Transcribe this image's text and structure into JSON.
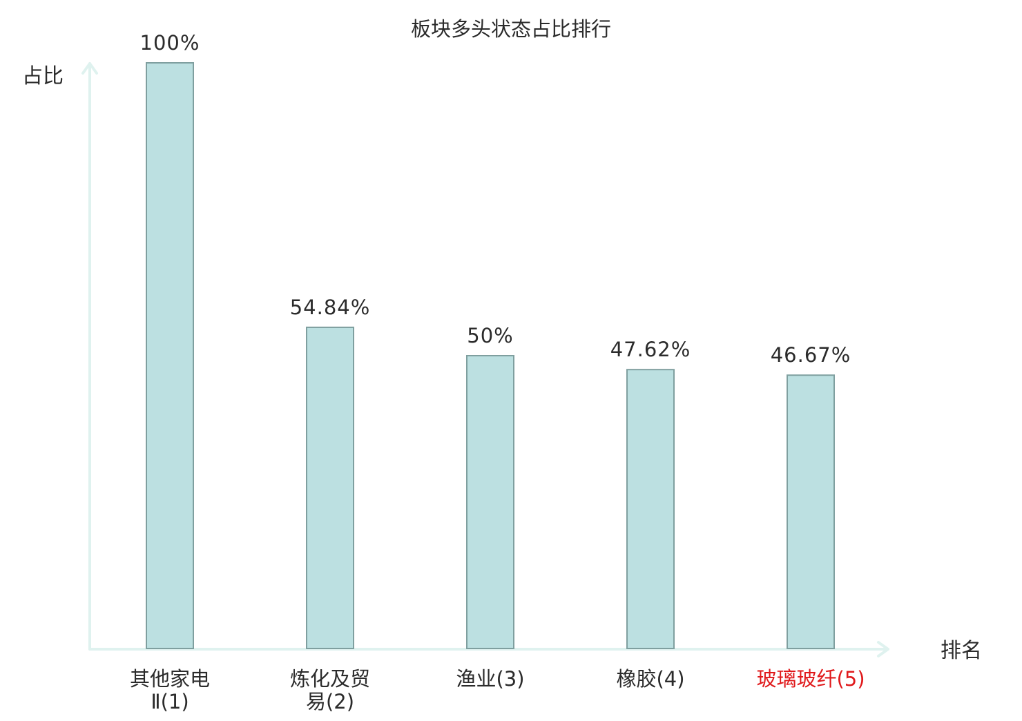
{
  "chart_data": {
    "type": "bar",
    "title": "板块多头状态占比排行",
    "ylabel": "占比",
    "xlabel": "排名",
    "categories": [
      {
        "lines": [
          "其他家电",
          "Ⅱ(1)"
        ],
        "highlight": false
      },
      {
        "lines": [
          "炼化及贸",
          "易(2)"
        ],
        "highlight": false
      },
      {
        "lines": [
          "渔业(3)"
        ],
        "highlight": false
      },
      {
        "lines": [
          "橡胶(4)"
        ],
        "highlight": false
      },
      {
        "lines": [
          "玻璃玻纤(5)"
        ],
        "highlight": true
      }
    ],
    "values": [
      100,
      54.84,
      50,
      47.62,
      46.67
    ],
    "value_labels": [
      "100%",
      "54.84%",
      "50%",
      "47.62%",
      "46.67%"
    ],
    "ylim": [
      0,
      100
    ],
    "grid": false,
    "legend": "none",
    "colors": {
      "bar_fill": "#bce0e1",
      "bar_stroke": "#7f9f9f",
      "axis": "#dff2ef",
      "text": "#2b2b2b",
      "highlight_text": "#e0191b"
    }
  }
}
